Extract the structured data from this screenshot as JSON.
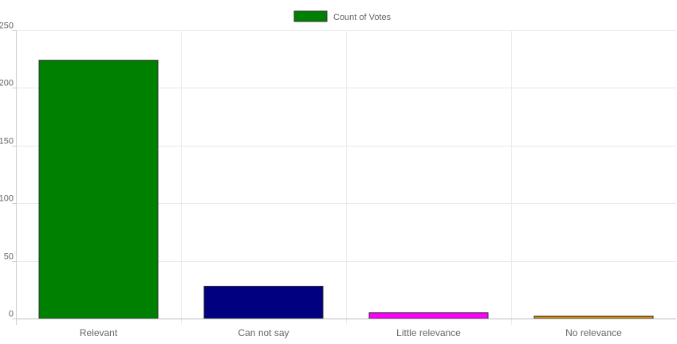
{
  "chart_data": {
    "type": "bar",
    "categories": [
      "Relevant",
      "Can not say",
      "Little relevance",
      "No relevance"
    ],
    "series": [
      {
        "name": "Count of Votes",
        "values": [
          224,
          28,
          5,
          2
        ]
      }
    ],
    "bar_colors": [
      "#008000",
      "#000080",
      "#ff00ff",
      "#e69500"
    ],
    "legend_color": "#008000",
    "title": "",
    "xlabel": "",
    "ylabel": "",
    "ylim": [
      0,
      250
    ],
    "yticks": [
      0,
      50,
      100,
      150,
      200,
      250
    ],
    "grid": true,
    "legend_position": "top-center"
  }
}
